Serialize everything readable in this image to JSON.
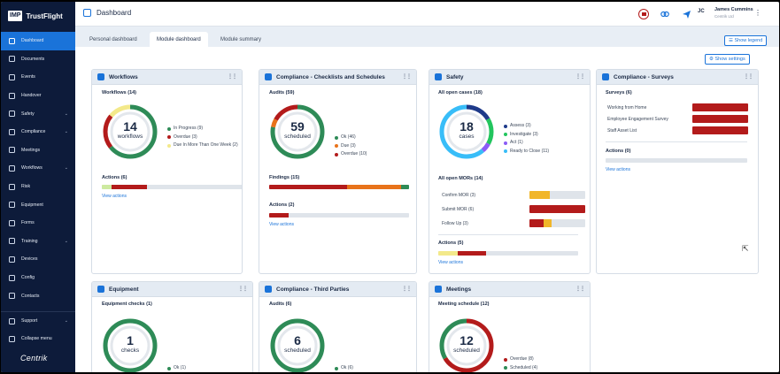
{
  "app": {
    "logo_box": "IMP",
    "logo_text": "TrustFlight",
    "footer_brand": "Centrik"
  },
  "sidebar": {
    "items": [
      {
        "label": "Dashboard",
        "active": true,
        "chevron": false
      },
      {
        "label": "Documents",
        "chevron": false
      },
      {
        "label": "Events",
        "chevron": false
      },
      {
        "label": "Handover",
        "chevron": false
      },
      {
        "label": "Safety",
        "chevron": true
      },
      {
        "label": "Compliance",
        "chevron": true
      },
      {
        "label": "Meetings",
        "chevron": false
      },
      {
        "label": "Workflows",
        "chevron": true
      },
      {
        "label": "Risk",
        "chevron": false
      },
      {
        "label": "Equipment",
        "chevron": false
      },
      {
        "label": "Forms",
        "chevron": false
      },
      {
        "label": "Training",
        "chevron": true
      },
      {
        "label": "Devices",
        "chevron": false
      },
      {
        "label": "Config",
        "chevron": false
      },
      {
        "label": "Contacts",
        "chevron": false
      }
    ],
    "bottom": [
      {
        "label": "Support",
        "chevron": true
      },
      {
        "label": "Collapse menu",
        "chevron": false
      }
    ]
  },
  "header": {
    "title": "Dashboard",
    "avatar": "JC",
    "user_name": "James Cummins",
    "user_role": "Centrik Ltd",
    "menu": "⋮"
  },
  "tabs": [
    "Personal dashboard",
    "Module dashboard",
    "Module summary"
  ],
  "buttons": {
    "show_legend": "Show legend",
    "show_settings": "Show settings"
  },
  "cards": {
    "workflows": {
      "title": "Workflows",
      "section": "Workflows (14)",
      "donut_num": "14",
      "donut_sub": "workflows",
      "legend": [
        {
          "label": "In Progress (9)",
          "color": "#2e8b57"
        },
        {
          "label": "Overdue (3)",
          "color": "#b31b1b"
        },
        {
          "label": "Due In More Than One Week (2)",
          "color": "#f3e98a"
        }
      ],
      "actions": "Actions (6)",
      "view": "View actions"
    },
    "checklists": {
      "title": "Compliance - Checklists and Schedules",
      "section": "Audits (59)",
      "donut_num": "59",
      "donut_sub": "scheduled",
      "legend": [
        {
          "label": "Ok (46)",
          "color": "#2e8b57"
        },
        {
          "label": "Due (3)",
          "color": "#e8731a"
        },
        {
          "label": "Overdue (10)",
          "color": "#b31b1b"
        }
      ],
      "findings": "Findings (15)",
      "actions": "Actions (2)",
      "view": "View actions"
    },
    "safety": {
      "title": "Safety",
      "section": "All open cases (18)",
      "donut_num": "18",
      "donut_sub": "cases",
      "legend": [
        {
          "label": "Assess (3)",
          "color": "#1e3a8a"
        },
        {
          "label": "Investigate (3)",
          "color": "#22c55e"
        },
        {
          "label": "Act (1)",
          "color": "#8b5cf6"
        },
        {
          "label": "Ready to Close (11)",
          "color": "#38bdf8"
        }
      ],
      "mors_title": "All open MORs (14)",
      "mors": [
        {
          "label": "Confirm MOR (3)"
        },
        {
          "label": "Submit MOR (6)"
        },
        {
          "label": "Follow Up (3)"
        }
      ],
      "actions": "Actions (5)",
      "view": "View actions"
    },
    "surveys": {
      "title": "Compliance - Surveys",
      "section": "Surveys (6)",
      "items": [
        "Working from Home",
        "Employee Engagement Survey",
        "Staff Asset List"
      ],
      "actions": "Actions (0)",
      "view": "View actions"
    },
    "equipment": {
      "title": "Equipment",
      "section": "Equipment checks (1)",
      "donut_num": "1",
      "donut_sub": "checks",
      "legend": [
        {
          "label": "Ok (1)",
          "color": "#2e8b57"
        }
      ]
    },
    "third_parties": {
      "title": "Compliance - Third Parties",
      "section": "Audits (6)",
      "donut_num": "6",
      "donut_sub": "scheduled",
      "legend": [
        {
          "label": "Ok (6)",
          "color": "#2e8b57"
        }
      ]
    },
    "meetings": {
      "title": "Meetings",
      "section": "Meeting schedule (12)",
      "donut_num": "12",
      "donut_sub": "scheduled",
      "legend": [
        {
          "label": "Overdue (8)",
          "color": "#b31b1b"
        },
        {
          "label": "Scheduled (4)",
          "color": "#2e8b57"
        }
      ]
    }
  }
}
